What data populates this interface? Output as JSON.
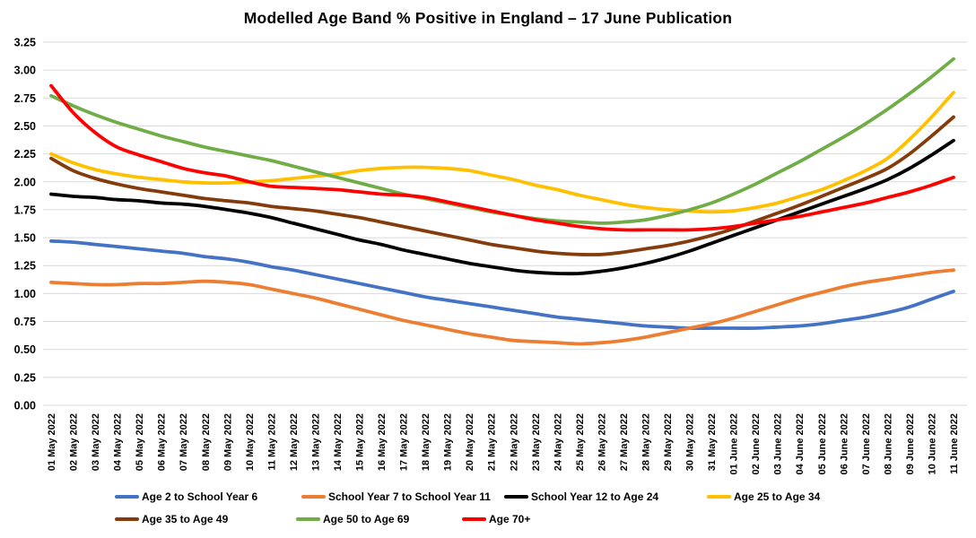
{
  "title": "Modelled Age Band % Positive in England – 17 June Publication",
  "chart_data": {
    "type": "line",
    "title": "Modelled Age Band % Positive in England – 17 June Publication",
    "xlabel": "",
    "ylabel": "",
    "ylim": [
      0.0,
      3.25
    ],
    "ytick_step": 0.25,
    "ytick_labels": [
      "0.00",
      "0.25",
      "0.50",
      "0.75",
      "1.00",
      "1.25",
      "1.50",
      "1.75",
      "2.00",
      "2.25",
      "2.50",
      "2.75",
      "3.00",
      "3.25"
    ],
    "grid": "horizontal",
    "gridline_color": "#d9d9d9",
    "background_color": "#ffffff",
    "legend_position": "bottom",
    "x": [
      "01 May 2022",
      "02 May 2022",
      "03 May 2022",
      "04 May 2022",
      "05 May 2022",
      "06 May 2022",
      "07 May 2022",
      "08 May 2022",
      "09 May 2022",
      "10 May 2022",
      "11 May 2022",
      "12 May 2022",
      "13 May 2022",
      "14 May 2022",
      "15 May 2022",
      "16 May 2022",
      "17 May 2022",
      "18 May 2022",
      "19 May 2022",
      "20 May 2022",
      "21 May 2022",
      "22 May 2022",
      "23 May 2022",
      "24 May 2022",
      "25 May 2022",
      "26 May 2022",
      "27 May 2022",
      "28 May 2022",
      "29 May 2022",
      "30 May 2022",
      "31 May 2022",
      "01 June 2022",
      "02 June 2022",
      "03 June 2022",
      "04 June 2022",
      "05 June 2022",
      "06 June 2022",
      "07 June 2022",
      "08 June 2022",
      "09 June 2022",
      "10 June 2022",
      "11 June 2022"
    ],
    "series": [
      {
        "name": "Age 2 to School Year 6",
        "color": "#4472C4",
        "values": [
          1.47,
          1.46,
          1.44,
          1.42,
          1.4,
          1.38,
          1.36,
          1.33,
          1.31,
          1.28,
          1.24,
          1.21,
          1.17,
          1.13,
          1.09,
          1.05,
          1.01,
          0.97,
          0.94,
          0.91,
          0.88,
          0.85,
          0.82,
          0.79,
          0.77,
          0.75,
          0.73,
          0.71,
          0.7,
          0.69,
          0.69,
          0.69,
          0.69,
          0.7,
          0.71,
          0.73,
          0.76,
          0.79,
          0.83,
          0.88,
          0.95,
          1.02
        ]
      },
      {
        "name": "School Year 7 to School Year 11",
        "color": "#ED7D31",
        "values": [
          1.1,
          1.09,
          1.08,
          1.08,
          1.09,
          1.09,
          1.1,
          1.11,
          1.1,
          1.08,
          1.04,
          1.0,
          0.96,
          0.91,
          0.86,
          0.81,
          0.76,
          0.72,
          0.68,
          0.64,
          0.61,
          0.58,
          0.57,
          0.56,
          0.55,
          0.56,
          0.58,
          0.61,
          0.65,
          0.69,
          0.73,
          0.78,
          0.84,
          0.9,
          0.96,
          1.01,
          1.06,
          1.1,
          1.13,
          1.16,
          1.19,
          1.21
        ]
      },
      {
        "name": "School Year 12 to Age 24",
        "color": "#000000",
        "values": [
          1.89,
          1.87,
          1.86,
          1.84,
          1.83,
          1.81,
          1.8,
          1.78,
          1.75,
          1.72,
          1.68,
          1.63,
          1.58,
          1.53,
          1.48,
          1.44,
          1.39,
          1.35,
          1.31,
          1.27,
          1.24,
          1.21,
          1.19,
          1.18,
          1.18,
          1.2,
          1.23,
          1.27,
          1.32,
          1.38,
          1.45,
          1.52,
          1.59,
          1.66,
          1.73,
          1.8,
          1.87,
          1.94,
          2.02,
          2.12,
          2.24,
          2.37
        ]
      },
      {
        "name": "Age 25 to Age 34",
        "color": "#FFC000",
        "values": [
          2.25,
          2.17,
          2.11,
          2.07,
          2.04,
          2.02,
          2.0,
          1.99,
          1.99,
          2.0,
          2.01,
          2.03,
          2.05,
          2.07,
          2.1,
          2.12,
          2.13,
          2.13,
          2.12,
          2.1,
          2.06,
          2.02,
          1.97,
          1.93,
          1.88,
          1.84,
          1.8,
          1.77,
          1.75,
          1.74,
          1.73,
          1.74,
          1.77,
          1.81,
          1.87,
          1.93,
          2.01,
          2.1,
          2.21,
          2.38,
          2.58,
          2.8
        ]
      },
      {
        "name": "Age 35 to Age 49",
        "color": "#843C0C",
        "values": [
          2.21,
          2.1,
          2.03,
          1.98,
          1.94,
          1.91,
          1.88,
          1.85,
          1.83,
          1.81,
          1.78,
          1.76,
          1.74,
          1.71,
          1.68,
          1.64,
          1.6,
          1.56,
          1.52,
          1.48,
          1.44,
          1.41,
          1.38,
          1.36,
          1.35,
          1.35,
          1.37,
          1.4,
          1.43,
          1.47,
          1.52,
          1.58,
          1.65,
          1.72,
          1.79,
          1.87,
          1.95,
          2.03,
          2.12,
          2.25,
          2.41,
          2.58
        ]
      },
      {
        "name": "Age 50 to Age 69",
        "color": "#70AD47",
        "values": [
          2.77,
          2.68,
          2.6,
          2.53,
          2.47,
          2.41,
          2.36,
          2.31,
          2.27,
          2.23,
          2.19,
          2.14,
          2.09,
          2.04,
          1.99,
          1.94,
          1.89,
          1.85,
          1.81,
          1.77,
          1.73,
          1.7,
          1.67,
          1.65,
          1.64,
          1.63,
          1.64,
          1.66,
          1.7,
          1.75,
          1.81,
          1.89,
          1.98,
          2.08,
          2.18,
          2.29,
          2.4,
          2.52,
          2.65,
          2.79,
          2.94,
          3.1
        ]
      },
      {
        "name": "Age 70+",
        "color": "#FF0000",
        "values": [
          2.86,
          2.62,
          2.44,
          2.31,
          2.24,
          2.18,
          2.12,
          2.08,
          2.05,
          2.0,
          1.96,
          1.95,
          1.94,
          1.93,
          1.91,
          1.89,
          1.88,
          1.86,
          1.82,
          1.78,
          1.74,
          1.7,
          1.66,
          1.63,
          1.6,
          1.58,
          1.57,
          1.57,
          1.57,
          1.57,
          1.58,
          1.6,
          1.63,
          1.66,
          1.69,
          1.73,
          1.77,
          1.81,
          1.86,
          1.91,
          1.97,
          2.04
        ]
      }
    ]
  }
}
